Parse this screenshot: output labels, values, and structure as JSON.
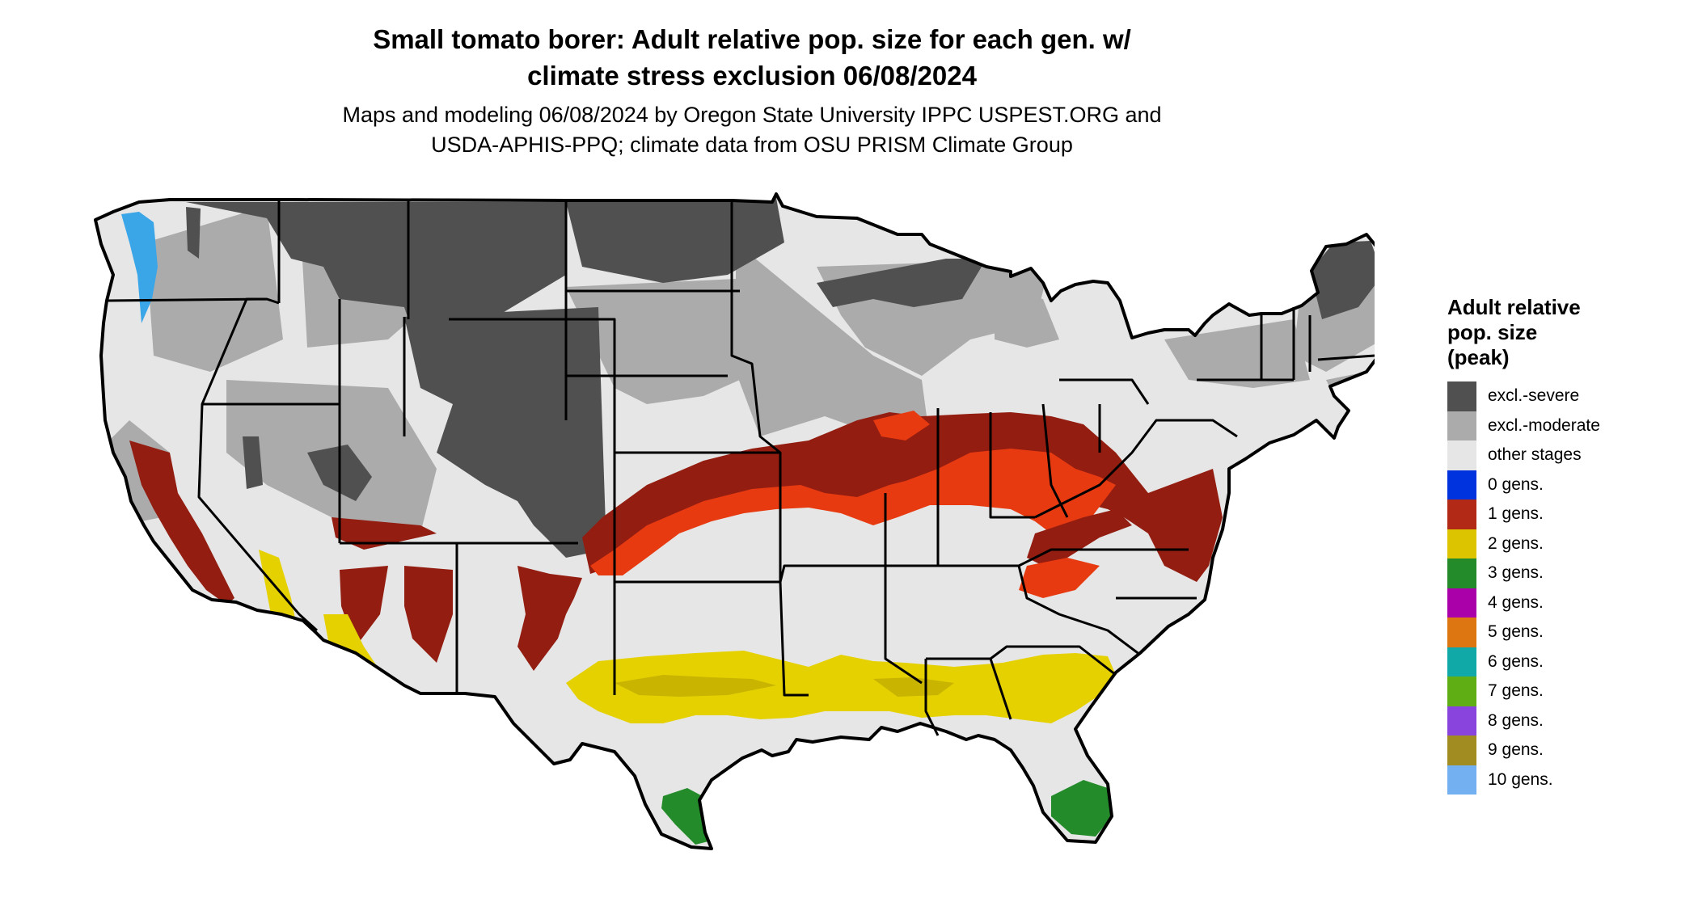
{
  "title": {
    "line1": "Small tomato borer: Adult relative pop. size for each gen. w/",
    "line2": "climate stress exclusion 06/08/2024"
  },
  "subtitle": {
    "line1": "Maps and modeling 06/08/2024 by Oregon State University IPPC USPEST.ORG and",
    "line2": "USDA-APHIS-PPQ; climate data from OSU PRISM Climate Group"
  },
  "legend": {
    "title_lines": [
      "Adult relative",
      "pop. size",
      "(peak)"
    ],
    "items": [
      {
        "label": "excl.-severe",
        "color": "#505050"
      },
      {
        "label": "excl.-moderate",
        "color": "#ababab"
      },
      {
        "label": "other stages",
        "color": "#e6e6e6"
      },
      {
        "label": "0 gens.",
        "color": "#0033dd"
      },
      {
        "label": "1 gens.",
        "color": "#b22a16"
      },
      {
        "label": "2 gens.",
        "color": "#ddc400"
      },
      {
        "label": "3 gens.",
        "color": "#238b2a"
      },
      {
        "label": "4 gens.",
        "color": "#aa00aa"
      },
      {
        "label": "5 gens.",
        "color": "#dd7511"
      },
      {
        "label": "6 gens.",
        "color": "#11a8a8"
      },
      {
        "label": "7 gens.",
        "color": "#5fae14"
      },
      {
        "label": "8 gens.",
        "color": "#8844dd"
      },
      {
        "label": "9 gens.",
        "color": "#a18c22"
      },
      {
        "label": "10 gens.",
        "color": "#73b0f2"
      }
    ]
  },
  "map_colors": {
    "other_stages": "#e6e6e6",
    "excl_moderate": "#ababab",
    "excl_severe": "#505050",
    "one_gen_dark": "#931d10",
    "one_gen_bright": "#e83a10",
    "two_gens": "#e5d100",
    "two_gens_dark": "#c9b400",
    "three_gens": "#238b2a",
    "zero_gens": "#3aa6e8",
    "border": "#000000"
  }
}
